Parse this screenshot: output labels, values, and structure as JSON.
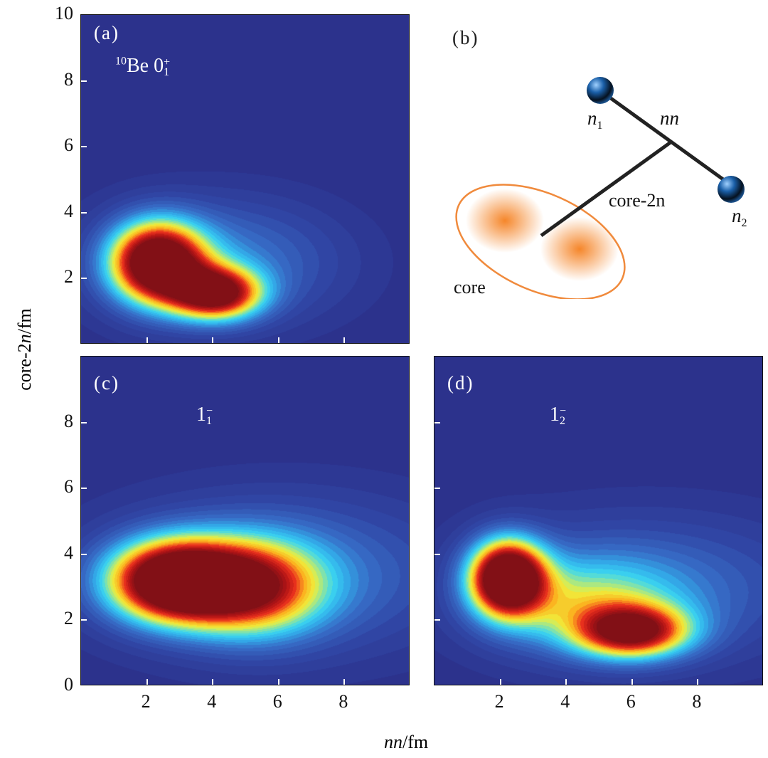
{
  "axes": {
    "ylabel_prefix": "core-2",
    "ylabel_italic": "n",
    "ylabel_suffix": "/fm",
    "xlabel_italic": "nn",
    "xlabel_suffix": "/fm"
  },
  "colors": {
    "background": "#2c328c",
    "core_outline": "#f08a3c",
    "core_fill": "#f5862a",
    "sphere": "#1a5fa8"
  },
  "diagram": {
    "label": "(b)",
    "n1": "n",
    "n1_sub": "1",
    "n2": "n",
    "n2_sub": "2",
    "nn": "nn",
    "core2n": "core-2n",
    "core": "core"
  },
  "chart_data": [
    {
      "type": "heatmap",
      "panel": "a",
      "label": "(a)",
      "state_prefix": "10",
      "state_main": "Be 0",
      "state_sup": "+",
      "state_sub": "1",
      "xlim": [
        0,
        10
      ],
      "ylim": [
        0,
        10
      ],
      "yticks": [
        10,
        8,
        6,
        4,
        2
      ],
      "xticks": [
        2,
        4,
        6,
        8
      ],
      "show_xlabels": false,
      "show_ylabels": true,
      "peaks": [
        {
          "x": 2.3,
          "y": 2.4
        },
        {
          "x": 4.0,
          "y": 1.5
        }
      ],
      "components": [
        {
          "x": 2.3,
          "y": 2.5,
          "sx": 1.0,
          "sy": 0.85,
          "a": 1.15
        },
        {
          "x": 4.1,
          "y": 1.55,
          "sx": 0.95,
          "sy": 0.55,
          "a": 0.95
        },
        {
          "x": 4.2,
          "y": 2.5,
          "sx": 2.6,
          "sy": 1.35,
          "a": 0.3
        }
      ]
    },
    {
      "type": "heatmap",
      "panel": "c",
      "label": "(c)",
      "state_main": "1",
      "state_sup": "−",
      "state_sub": "1",
      "xlim": [
        0,
        10
      ],
      "ylim": [
        0,
        10
      ],
      "yticks": [
        8,
        6,
        4,
        2,
        0
      ],
      "xticks": [
        2,
        4,
        6,
        8
      ],
      "show_xlabels": true,
      "show_ylabels": true,
      "peaks": [
        {
          "x": 3.0,
          "y": 3.2
        }
      ],
      "components": [
        {
          "x": 2.8,
          "y": 3.2,
          "sx": 1.4,
          "sy": 0.85,
          "a": 1.2
        },
        {
          "x": 5.2,
          "y": 3.0,
          "sx": 1.5,
          "sy": 1.0,
          "a": 0.75
        },
        {
          "x": 6.2,
          "y": 3.4,
          "sx": 3.8,
          "sy": 1.7,
          "a": 0.28
        }
      ]
    },
    {
      "type": "heatmap",
      "panel": "d",
      "label": "(d)",
      "state_main": "1",
      "state_sup": "−",
      "state_sub": "2",
      "xlim": [
        0,
        10
      ],
      "ylim": [
        0,
        10
      ],
      "yticks": [
        8,
        6,
        4,
        2
      ],
      "xticks": [
        2,
        4,
        6,
        8
      ],
      "show_xlabels": true,
      "show_ylabels": false,
      "peaks": [
        {
          "x": 2.2,
          "y": 3.3
        },
        {
          "x": 6.0,
          "y": 1.6
        }
      ],
      "components": [
        {
          "x": 2.2,
          "y": 3.3,
          "sx": 0.8,
          "sy": 0.8,
          "a": 1.25
        },
        {
          "x": 6.0,
          "y": 1.65,
          "sx": 1.2,
          "sy": 0.55,
          "a": 0.85
        },
        {
          "x": 4.6,
          "y": 2.5,
          "sx": 2.0,
          "sy": 1.0,
          "a": 0.38
        },
        {
          "x": 6.5,
          "y": 3.0,
          "sx": 3.8,
          "sy": 1.6,
          "a": 0.24
        }
      ]
    }
  ]
}
